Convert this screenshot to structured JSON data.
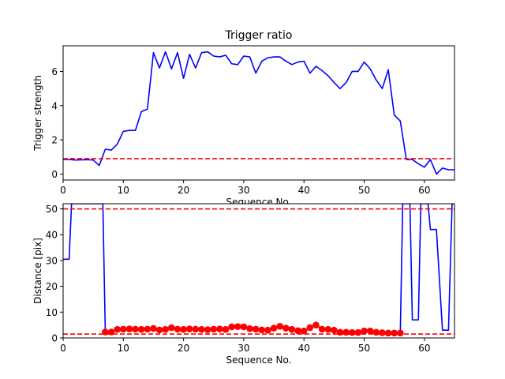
{
  "chart_data": [
    {
      "type": "line",
      "title": "Trigger ratio",
      "xlabel": "Sequence No.",
      "ylabel": "Trigger strength",
      "xlim": [
        0,
        65
      ],
      "ylim": [
        -0.35,
        7.5
      ],
      "xticks": [
        0,
        10,
        20,
        30,
        40,
        50,
        60
      ],
      "yticks": [
        0,
        2,
        4,
        6
      ],
      "grid": false,
      "series": [
        {
          "color": "#0000ff",
          "style": "solid",
          "x": [
            0,
            1,
            2,
            3,
            4,
            5,
            6,
            7,
            8,
            9,
            10,
            11,
            12,
            13,
            14,
            15,
            16,
            17,
            18,
            19,
            20,
            21,
            22,
            23,
            24,
            25,
            26,
            27,
            28,
            29,
            30,
            31,
            32,
            33,
            34,
            35,
            36,
            37,
            38,
            39,
            40,
            41,
            42,
            43,
            44,
            45,
            46,
            47,
            48,
            49,
            50,
            51,
            52,
            53,
            54,
            55,
            56,
            57,
            58,
            59,
            60,
            61,
            62,
            63,
            64,
            65
          ],
          "values": [
            0.85,
            0.85,
            0.82,
            0.83,
            0.84,
            0.82,
            0.5,
            1.45,
            1.4,
            1.75,
            2.5,
            2.55,
            2.55,
            3.65,
            3.8,
            7.1,
            6.2,
            7.15,
            6.15,
            7.1,
            5.6,
            7.0,
            6.2,
            7.1,
            7.15,
            6.9,
            6.85,
            6.95,
            6.45,
            6.4,
            6.9,
            6.85,
            5.9,
            6.6,
            6.8,
            6.85,
            6.85,
            6.6,
            6.4,
            6.55,
            6.6,
            5.9,
            6.3,
            6.05,
            5.75,
            5.35,
            5.0,
            5.35,
            6.0,
            6.0,
            6.55,
            6.15,
            5.5,
            5.0,
            6.1,
            3.45,
            3.1,
            0.85,
            0.85,
            0.6,
            0.4,
            0.85,
            0.0,
            0.35,
            0.25,
            0.25
          ]
        }
      ],
      "hlines": [
        {
          "y": 0.9,
          "color": "#ff0000",
          "style": "dashed"
        }
      ]
    },
    {
      "type": "line",
      "title": "",
      "xlabel": "Sequence No.",
      "ylabel": "Distance [pix]",
      "xlim": [
        0,
        65
      ],
      "ylim": [
        0,
        52
      ],
      "xticks": [
        0,
        10,
        20,
        30,
        40,
        50,
        60
      ],
      "yticks": [
        0,
        10,
        20,
        30,
        40,
        50
      ],
      "grid": false,
      "series": [
        {
          "color": "#0000ff",
          "style": "solid",
          "x": [
            0,
            1,
            1.4,
            6.6,
            7,
            8,
            9,
            10,
            11,
            12,
            13,
            14,
            15,
            16,
            17,
            18,
            19,
            20,
            21,
            22,
            23,
            24,
            25,
            26,
            27,
            28,
            29,
            30,
            31,
            32,
            33,
            34,
            35,
            36,
            37,
            38,
            39,
            40,
            41,
            42,
            43,
            44,
            45,
            46,
            47,
            48,
            49,
            50,
            51,
            52,
            53,
            54,
            55,
            56,
            56.4,
            57.6,
            58,
            59,
            59.4,
            60.6,
            61,
            62,
            63,
            64,
            64.6,
            65
          ],
          "values": [
            30.5,
            30.5,
            52,
            52,
            2.3,
            2.3,
            3.3,
            3.4,
            3.5,
            3.4,
            3.3,
            3.4,
            3.7,
            3.1,
            3.3,
            4.0,
            3.4,
            3.3,
            3.5,
            3.4,
            3.3,
            3.2,
            3.4,
            3.5,
            3.3,
            4.3,
            4.4,
            4.3,
            3.6,
            3.4,
            3.1,
            3.0,
            3.8,
            4.5,
            3.8,
            3.3,
            2.8,
            2.7,
            4.0,
            5.0,
            3.4,
            3.3,
            3.0,
            2.2,
            2.2,
            2.1,
            2.1,
            2.7,
            2.7,
            2.2,
            2.0,
            1.9,
            1.9,
            1.9,
            52,
            52,
            7.0,
            7.0,
            52,
            52,
            42,
            42,
            3.0,
            3.0,
            52,
            52
          ]
        },
        {
          "color": "#ff0000",
          "style": "markers",
          "x": [
            7,
            8,
            9,
            10,
            11,
            12,
            13,
            14,
            15,
            16,
            17,
            18,
            19,
            20,
            21,
            22,
            23,
            24,
            25,
            26,
            27,
            28,
            29,
            30,
            31,
            32,
            33,
            34,
            35,
            36,
            37,
            38,
            39,
            40,
            41,
            42,
            43,
            44,
            45,
            46,
            47,
            48,
            49,
            50,
            51,
            52,
            53,
            54,
            55,
            56
          ],
          "values": [
            2.3,
            2.3,
            3.3,
            3.4,
            3.5,
            3.4,
            3.3,
            3.4,
            3.7,
            3.1,
            3.3,
            4.0,
            3.4,
            3.3,
            3.5,
            3.4,
            3.3,
            3.2,
            3.4,
            3.5,
            3.3,
            4.3,
            4.4,
            4.3,
            3.6,
            3.4,
            3.1,
            3.0,
            3.8,
            4.5,
            3.8,
            3.3,
            2.8,
            2.7,
            4.0,
            5.0,
            3.4,
            3.3,
            3.0,
            2.2,
            2.2,
            2.1,
            2.1,
            2.7,
            2.7,
            2.2,
            2.0,
            1.9,
            1.9,
            1.9
          ]
        }
      ],
      "hlines": [
        {
          "y": 50,
          "color": "#ff0000",
          "style": "dashed"
        },
        {
          "y": 1.5,
          "color": "#ff0000",
          "style": "dashed"
        }
      ]
    }
  ]
}
